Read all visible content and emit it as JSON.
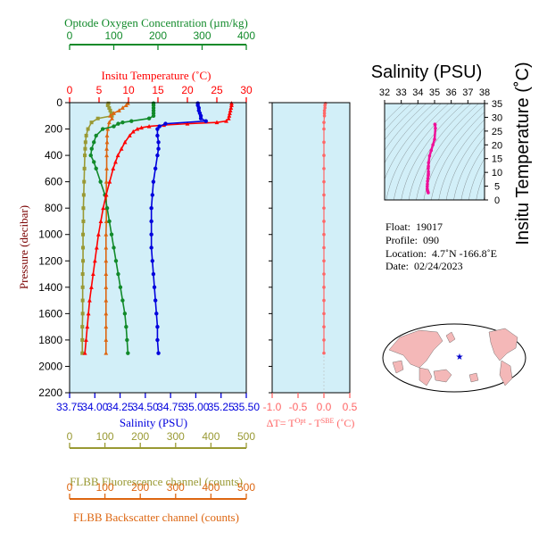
{
  "colors": {
    "oxygen": "#118a2a",
    "temperature": "#ff0000",
    "salinity": "#0000dd",
    "fluorescence": "#999933",
    "backscatter": "#dd6611",
    "delta": "#ff6666",
    "plot_bg": "#d2eff8",
    "ts_track": "#ee1199"
  },
  "chart_data": [
    {
      "type": "line",
      "axes": {
        "oxygen": {
          "title": "Optode Oxygen Concentration (µm/kg)",
          "range": [
            0,
            400
          ],
          "ticks": [
            "0",
            "100",
            "200",
            "300",
            "400"
          ]
        },
        "temperature": {
          "title": "Insitu Temperature (˚C)",
          "range": [
            0,
            30
          ],
          "ticks": [
            "0",
            "5",
            "10",
            "15",
            "20",
            "25",
            "30"
          ]
        },
        "salinity": {
          "title": "Salinity (PSU)",
          "range": [
            33.75,
            35.5
          ],
          "ticks": [
            "33.75",
            "34.00",
            "34.25",
            "34.50",
            "34.75",
            "35.00",
            "35.25",
            "35.50"
          ]
        },
        "pressure": {
          "title": "Pressure (decibar)",
          "range": [
            0,
            2200
          ],
          "ticks": [
            "0",
            "200",
            "400",
            "600",
            "800",
            "1000",
            "1200",
            "1400",
            "1600",
            "1800",
            "2000",
            "2200"
          ]
        },
        "fluorescence": {
          "title": "FLBB Fluorescence channel (counts)",
          "range": [
            0,
            500
          ],
          "ticks": [
            "0",
            "100",
            "200",
            "300",
            "400",
            "500"
          ]
        },
        "backscatter": {
          "title": "FLBB Backscatter channel (counts)",
          "range": [
            0,
            500
          ],
          "ticks": [
            "0",
            "100",
            "200",
            "300",
            "400",
            "500"
          ]
        }
      },
      "series": [
        {
          "name": "Insitu Temperature",
          "axis": "temperature",
          "p": [
            5,
            20,
            40,
            60,
            80,
            100,
            120,
            140,
            150,
            160,
            170,
            180,
            190,
            200,
            220,
            250,
            300,
            350,
            400,
            450,
            500,
            600,
            700,
            800,
            900,
            1000,
            1100,
            1200,
            1300,
            1400,
            1500,
            1600,
            1700,
            1800,
            1900
          ],
          "v": [
            27.5,
            27.5,
            27.4,
            27.3,
            27.2,
            27.1,
            27.0,
            26.6,
            25.0,
            20.0,
            16.0,
            13.5,
            12.2,
            11.5,
            10.8,
            10.2,
            9.4,
            8.8,
            8.2,
            7.8,
            7.4,
            6.8,
            6.2,
            5.7,
            5.3,
            4.9,
            4.6,
            4.3,
            4.0,
            3.7,
            3.4,
            3.2,
            3.0,
            2.8,
            2.6
          ]
        },
        {
          "name": "Salinity",
          "axis": "salinity",
          "p": [
            5,
            20,
            40,
            60,
            80,
            100,
            120,
            140,
            160,
            180,
            200,
            250,
            300,
            350,
            400,
            500,
            600,
            700,
            800,
            900,
            1000,
            1100,
            1200,
            1300,
            1400,
            1500,
            1600,
            1700,
            1800,
            1900
          ],
          "v": [
            35.02,
            35.02,
            35.03,
            35.03,
            35.04,
            35.05,
            35.05,
            35.1,
            34.7,
            34.64,
            34.62,
            34.62,
            34.63,
            34.63,
            34.62,
            34.6,
            34.58,
            34.57,
            34.56,
            34.56,
            34.56,
            34.56,
            34.57,
            34.58,
            34.59,
            34.6,
            34.61,
            34.62,
            34.62,
            34.63
          ]
        },
        {
          "name": "Optode Oxygen Concentration",
          "axis": "oxygen",
          "p": [
            5,
            20,
            40,
            60,
            80,
            100,
            120,
            140,
            150,
            160,
            180,
            200,
            250,
            300,
            350,
            400,
            450,
            500,
            600,
            700,
            800,
            900,
            1000,
            1100,
            1200,
            1300,
            1400,
            1500,
            1600,
            1700,
            1800,
            1900
          ],
          "v": [
            190,
            190,
            190,
            190,
            190,
            190,
            180,
            140,
            120,
            110,
            100,
            75,
            60,
            55,
            50,
            48,
            55,
            60,
            70,
            80,
            85,
            90,
            95,
            100,
            105,
            110,
            115,
            120,
            125,
            128,
            130,
            132
          ]
        },
        {
          "name": "FLBB Fluorescence channel",
          "axis": "fluorescence",
          "p": [
            5,
            20,
            40,
            60,
            80,
            100,
            120,
            150,
            200,
            250,
            300,
            350,
            400,
            500,
            600,
            700,
            800,
            900,
            1000,
            1100,
            1200,
            1300,
            1400,
            1500,
            1600,
            1700,
            1800,
            1900
          ],
          "v": [
            110,
            108,
            112,
            115,
            118,
            120,
            80,
            62,
            52,
            47,
            45,
            44,
            43,
            42,
            41,
            40,
            39,
            39,
            38,
            38,
            38,
            37,
            37,
            37,
            37,
            36,
            36,
            36
          ]
        },
        {
          "name": "FLBB Backscatter channel",
          "axis": "backscatter",
          "p": [
            5,
            20,
            40,
            60,
            80,
            100,
            120,
            150,
            200,
            250,
            300,
            350,
            400,
            500,
            600,
            700,
            800,
            900,
            1000,
            1100,
            1200,
            1300,
            1400,
            1500,
            1600,
            1700,
            1800,
            1900
          ],
          "v": [
            165,
            160,
            150,
            140,
            125,
            115,
            120,
            112,
            108,
            106,
            106,
            105,
            105,
            105,
            104,
            104,
            104,
            104,
            103,
            103,
            103,
            103,
            103,
            103,
            103,
            103,
            103,
            103
          ]
        }
      ]
    },
    {
      "type": "line",
      "xlabel_prefix": "ΔT= T",
      "xlabel_sup1": "Opt",
      "xlabel_mid": " - T",
      "xlabel_sup2": "SBE",
      "xlabel_suffix": " (˚C)",
      "xlim": [
        -1.0,
        0.5
      ],
      "xticks": [
        "-1.0",
        "-0.5",
        "0.0",
        "0.5"
      ],
      "ylim": [
        0,
        2200
      ],
      "series": [
        {
          "name": "ΔT",
          "p": [
            5,
            20,
            40,
            60,
            80,
            100,
            150,
            200,
            300,
            400,
            500,
            600,
            700,
            800,
            900,
            1000,
            1100,
            1200,
            1300,
            1400,
            1500,
            1600,
            1700,
            1800,
            1900
          ],
          "v": [
            0.03,
            0.02,
            0.02,
            0.01,
            0.01,
            0.01,
            0.0,
            0.0,
            0.0,
            0.0,
            0.0,
            0.0,
            0.0,
            0.0,
            0.0,
            0.0,
            0.0,
            0.0,
            0.0,
            0.0,
            0.0,
            0.0,
            0.0,
            0.0,
            0.0
          ]
        }
      ]
    },
    {
      "type": "scatter",
      "title": "Salinity (PSU)",
      "ylabel": "Insitu Temperature (˚C)",
      "xlim": [
        32,
        38
      ],
      "ylim": [
        0,
        35
      ],
      "xticks": [
        "32",
        "33",
        "34",
        "35",
        "36",
        "37",
        "38"
      ],
      "yticks": [
        "0",
        "5",
        "10",
        "15",
        "20",
        "25",
        "30",
        "35"
      ],
      "grid": "density contours",
      "series": [
        {
          "name": "T-S track",
          "x": [
            34.62,
            34.6,
            34.58,
            34.56,
            34.56,
            34.57,
            34.58,
            34.6,
            34.62,
            34.63,
            34.63,
            34.62,
            34.63,
            34.64,
            34.7,
            34.8,
            34.9,
            35.0,
            35.05,
            35.03,
            35.02
          ],
          "y": [
            2.6,
            3.0,
            3.4,
            4.0,
            4.9,
            5.7,
            6.8,
            7.8,
            8.8,
            9.4,
            10.2,
            11.5,
            12.2,
            13.5,
            16.0,
            18.0,
            20.0,
            22.0,
            26.0,
            27.3,
            27.5
          ]
        }
      ]
    }
  ],
  "info": {
    "float_label": "Float:",
    "float_value": "19017",
    "profile_label": "Profile:",
    "profile_value": "090",
    "location_label": "Location:",
    "location_value": "4.7˚N  -166.8˚E",
    "date_label": "Date:",
    "date_value": "02/24/2023"
  },
  "map": {
    "marker_icon": "star-icon",
    "marker_lat": 4.7,
    "marker_lon": -166.8
  }
}
